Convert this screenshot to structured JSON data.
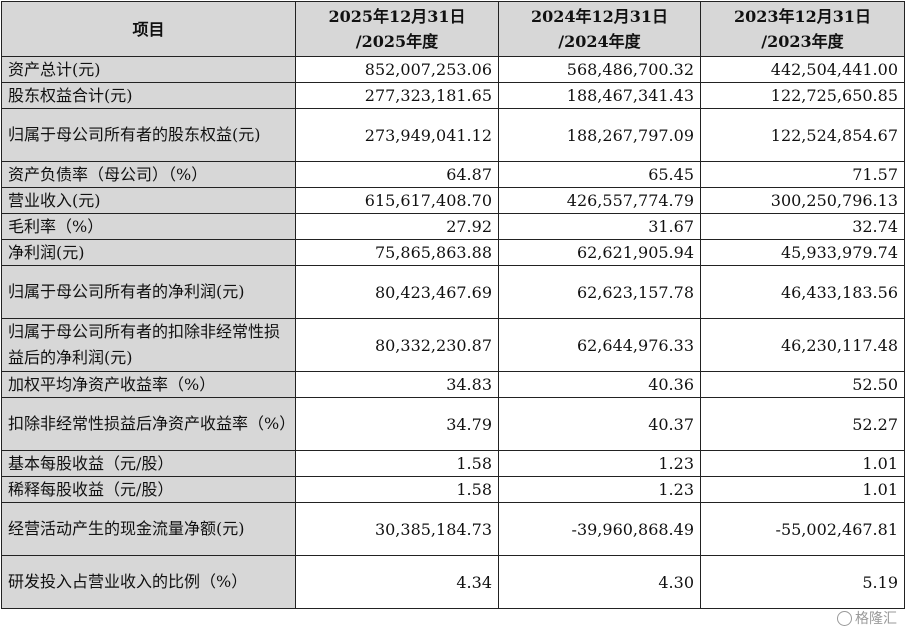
{
  "table": {
    "headers": [
      "项目",
      "2025年12月31日\n/2025年度",
      "2024年12月31日\n/2024年度",
      "2023年12月31日\n/2023年度"
    ],
    "rows": [
      {
        "label": "资产总计(元)",
        "values": [
          "852,007,253.06",
          "568,486,700.32",
          "442,504,441.00"
        ]
      },
      {
        "label": "股东权益合计(元)",
        "values": [
          "277,323,181.65",
          "188,467,341.43",
          "122,725,650.85"
        ]
      },
      {
        "label": "归属于母公司所有者的股东权益(元)",
        "values": [
          "273,949,041.12",
          "188,267,797.09",
          "122,524,854.67"
        ]
      },
      {
        "label": "资产负债率（母公司）（%）",
        "values": [
          "64.87",
          "65.45",
          "71.57"
        ]
      },
      {
        "label": "营业收入(元)",
        "values": [
          "615,617,408.70",
          "426,557,774.79",
          "300,250,796.13"
        ]
      },
      {
        "label": "毛利率（%）",
        "values": [
          "27.92",
          "31.67",
          "32.74"
        ]
      },
      {
        "label": "净利润(元)",
        "values": [
          "75,865,863.88",
          "62,621,905.94",
          "45,933,979.74"
        ]
      },
      {
        "label": "归属于母公司所有者的净利润(元)",
        "values": [
          "80,423,467.69",
          "62,623,157.78",
          "46,433,183.56"
        ]
      },
      {
        "label": "归属于母公司所有者的扣除非经常性损益后的净利润(元)",
        "values": [
          "80,332,230.87",
          "62,644,976.33",
          "46,230,117.48"
        ]
      },
      {
        "label": "加权平均净资产收益率（%）",
        "values": [
          "34.83",
          "40.36",
          "52.50"
        ]
      },
      {
        "label": "扣除非经常性损益后净资产收益率（%）",
        "values": [
          "34.79",
          "40.37",
          "52.27"
        ]
      },
      {
        "label": "基本每股收益（元/股）",
        "values": [
          "1.58",
          "1.23",
          "1.01"
        ]
      },
      {
        "label": "稀释每股收益（元/股）",
        "values": [
          "1.58",
          "1.23",
          "1.01"
        ]
      },
      {
        "label": "经营活动产生的现金流量净额(元)",
        "values": [
          "30,385,184.73",
          "-39,960,868.49",
          "-55,002,467.81"
        ]
      },
      {
        "label": "研发投入占营业收入的比例（%）",
        "values": [
          "4.34",
          "4.30",
          "5.19"
        ]
      }
    ]
  },
  "watermark": {
    "text": "格隆汇"
  }
}
